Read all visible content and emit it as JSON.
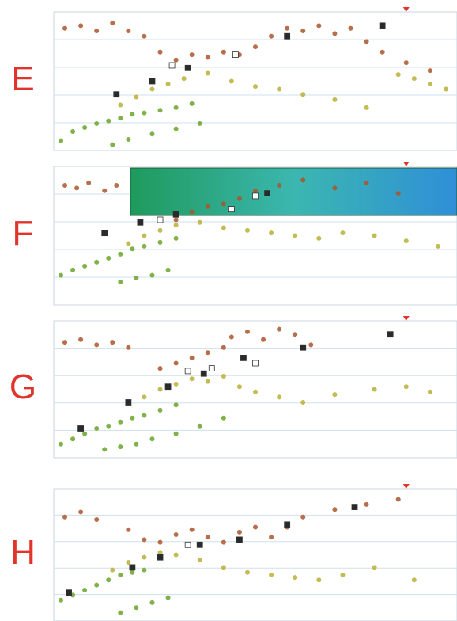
{
  "chart_data": [
    {
      "type": "scatter",
      "title": "E",
      "xlim": [
        0,
        100
      ],
      "ylim": [
        0,
        100
      ],
      "grid": true,
      "series": [
        {
          "color": "#6aa52a",
          "marker": "dot",
          "x": [
            1,
            4,
            7,
            10,
            13,
            16,
            19,
            22,
            26,
            30,
            34,
            14,
            18,
            24,
            30,
            36
          ],
          "values": [
            5,
            12,
            15,
            18,
            20,
            22,
            25,
            26,
            28,
            30,
            33,
            2,
            6,
            10,
            14,
            18
          ]
        },
        {
          "color": "#b9b036",
          "marker": "dot",
          "x": [
            16,
            20,
            24,
            28,
            32,
            38,
            44,
            50,
            56,
            62,
            70,
            78,
            86,
            90,
            94,
            98
          ],
          "values": [
            32,
            38,
            44,
            48,
            52,
            56,
            50,
            46,
            44,
            40,
            36,
            30,
            55,
            52,
            48,
            44
          ]
        },
        {
          "color": "#a9562a",
          "marker": "dot",
          "x": [
            2,
            6,
            10,
            14,
            18,
            22,
            26,
            30,
            34,
            38,
            42,
            46,
            50,
            54,
            58,
            62,
            66,
            70,
            74,
            78,
            82,
            88,
            94
          ],
          "values": [
            90,
            92,
            88,
            94,
            88,
            84,
            72,
            66,
            70,
            68,
            72,
            70,
            76,
            84,
            90,
            88,
            92,
            86,
            90,
            80,
            72,
            64,
            58
          ]
        },
        {
          "color": "#2a2a2a",
          "marker": "square",
          "x": [
            15,
            24,
            33,
            58,
            82
          ],
          "values": [
            40,
            50,
            60,
            84,
            92
          ]
        },
        {
          "color": "#ffffff",
          "marker": "square",
          "x": [
            29,
            45
          ],
          "values": [
            62,
            70
          ]
        }
      ]
    },
    {
      "type": "scatter",
      "title": "F",
      "xlim": [
        0,
        100
      ],
      "ylim": [
        0,
        100
      ],
      "grid": true,
      "series": [
        {
          "color": "#6aa52a",
          "marker": "dot",
          "x": [
            1,
            4,
            7,
            10,
            13,
            16,
            19,
            22,
            26,
            30,
            16,
            20,
            24,
            28
          ],
          "values": [
            20,
            24,
            27,
            30,
            33,
            36,
            40,
            42,
            45,
            48,
            15,
            18,
            20,
            24
          ]
        },
        {
          "color": "#b9b036",
          "marker": "dot",
          "x": [
            18,
            22,
            26,
            30,
            36,
            42,
            48,
            54,
            60,
            66,
            72,
            80,
            88,
            96
          ],
          "values": [
            44,
            50,
            54,
            58,
            60,
            56,
            54,
            52,
            50,
            48,
            52,
            50,
            46,
            42
          ]
        },
        {
          "color": "#a9562a",
          "marker": "dot",
          "x": [
            2,
            5,
            8,
            12,
            15,
            30,
            34,
            38,
            42,
            46,
            50,
            56,
            62,
            70,
            78,
            86
          ],
          "values": [
            88,
            86,
            90,
            84,
            88,
            62,
            68,
            72,
            74,
            78,
            84,
            88,
            92,
            86,
            90,
            82
          ]
        },
        {
          "color": "#2a2a2a",
          "marker": "square",
          "x": [
            12,
            21,
            30,
            53
          ],
          "values": [
            52,
            60,
            66,
            82
          ]
        },
        {
          "color": "#ffffff",
          "marker": "square",
          "x": [
            26,
            44,
            50
          ],
          "values": [
            62,
            70,
            80
          ]
        }
      ]
    },
    {
      "type": "scatter",
      "title": "G",
      "xlim": [
        0,
        100
      ],
      "ylim": [
        0,
        100
      ],
      "grid": true,
      "series": [
        {
          "color": "#6aa52a",
          "marker": "dot",
          "x": [
            1,
            4,
            7,
            10,
            13,
            16,
            19,
            22,
            26,
            30,
            12,
            16,
            20,
            24,
            30,
            36,
            42
          ],
          "values": [
            8,
            12,
            16,
            20,
            22,
            25,
            28,
            30,
            34,
            38,
            4,
            6,
            8,
            12,
            16,
            22,
            28
          ]
        },
        {
          "color": "#b9b036",
          "marker": "dot",
          "x": [
            18,
            22,
            26,
            30,
            34,
            38,
            42,
            46,
            50,
            56,
            62,
            70,
            80,
            88,
            94
          ],
          "values": [
            40,
            44,
            50,
            54,
            58,
            56,
            60,
            52,
            48,
            44,
            40,
            46,
            50,
            52,
            48
          ]
        },
        {
          "color": "#a9562a",
          "marker": "dot",
          "x": [
            2,
            6,
            10,
            14,
            18,
            26,
            30,
            34,
            38,
            42,
            44,
            48,
            52,
            56,
            60,
            64
          ],
          "values": [
            86,
            88,
            84,
            86,
            82,
            66,
            70,
            74,
            78,
            82,
            90,
            94,
            88,
            96,
            92,
            84
          ]
        },
        {
          "color": "#2a2a2a",
          "marker": "square",
          "x": [
            6,
            18,
            28,
            37,
            47,
            62,
            84
          ],
          "values": [
            20,
            40,
            52,
            62,
            74,
            82,
            92
          ]
        },
        {
          "color": "#ffffff",
          "marker": "square",
          "x": [
            33,
            39,
            50
          ],
          "values": [
            64,
            66,
            70
          ]
        }
      ]
    },
    {
      "type": "scatter",
      "title": "H",
      "xlim": [
        0,
        100
      ],
      "ylim": [
        0,
        100
      ],
      "grid": true,
      "series": [
        {
          "color": "#6aa52a",
          "marker": "dot",
          "x": [
            1,
            4,
            7,
            10,
            13,
            16,
            19,
            22,
            16,
            20,
            24,
            28
          ],
          "values": [
            14,
            18,
            22,
            26,
            30,
            34,
            36,
            38,
            4,
            8,
            12,
            16
          ]
        },
        {
          "color": "#b9b036",
          "marker": "dot",
          "x": [
            14,
            18,
            22,
            26,
            30,
            36,
            42,
            48,
            54,
            60,
            66,
            72,
            80,
            90
          ],
          "values": [
            38,
            44,
            48,
            52,
            50,
            46,
            40,
            36,
            34,
            32,
            30,
            34,
            40,
            30
          ]
        },
        {
          "color": "#a9562a",
          "marker": "dot",
          "x": [
            2,
            6,
            10,
            18,
            22,
            26,
            30,
            34,
            38,
            42,
            46,
            50,
            54,
            58,
            62,
            70,
            78,
            86
          ],
          "values": [
            80,
            84,
            78,
            70,
            62,
            60,
            66,
            70,
            64,
            60,
            68,
            72,
            64,
            72,
            80,
            86,
            90,
            94
          ]
        },
        {
          "color": "#2a2a2a",
          "marker": "square",
          "x": [
            3,
            19,
            26,
            36,
            46,
            58,
            75
          ],
          "values": [
            20,
            40,
            48,
            58,
            62,
            74,
            88
          ]
        },
        {
          "color": "#ffffff",
          "marker": "square",
          "x": [
            33
          ],
          "values": [
            58
          ]
        }
      ]
    }
  ]
}
